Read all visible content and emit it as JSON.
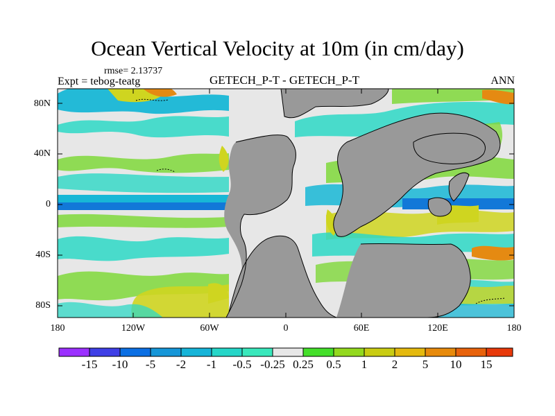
{
  "header": {
    "title": "Ocean Vertical Velocity at 10m (in cm/day)",
    "rmse": "rmse= 2.13737",
    "expt": "Expt = tebog-teatg",
    "comparison": "GETECH_P-T - GETECH_P-T",
    "period": "ANN"
  },
  "axes": {
    "lat_ticks": [
      "80N",
      "40N",
      "0",
      "40S",
      "80S"
    ],
    "lon_ticks": [
      "180",
      "120W",
      "60W",
      "0",
      "60E",
      "120E",
      "180"
    ]
  },
  "colorbar": {
    "labels": [
      "-15",
      "-10",
      "-5",
      "-2",
      "-1",
      "-0.5",
      "-0.25",
      "0.25",
      "0.5",
      "1",
      "2",
      "5",
      "10",
      "15"
    ],
    "colors": [
      "#9b30ff",
      "#3f3fe6",
      "#0b6fe3",
      "#1596d8",
      "#16b4d8",
      "#25d6c8",
      "#39e8bc",
      "#e7e7e7",
      "#44df2a",
      "#93d91e",
      "#c9cc12",
      "#e4b90e",
      "#e78a0b",
      "#e8620b",
      "#e8390a"
    ]
  },
  "map_colors": {
    "land": "#999999",
    "neutral": "#e7e7e7",
    "positive_weak": "#7fd83a",
    "positive_mid": "#cfd520",
    "positive_strong": "#e58a12",
    "negative_weak": "#2dd8c5",
    "negative_mid": "#18b7d6",
    "negative_strong": "#1278d8"
  }
}
